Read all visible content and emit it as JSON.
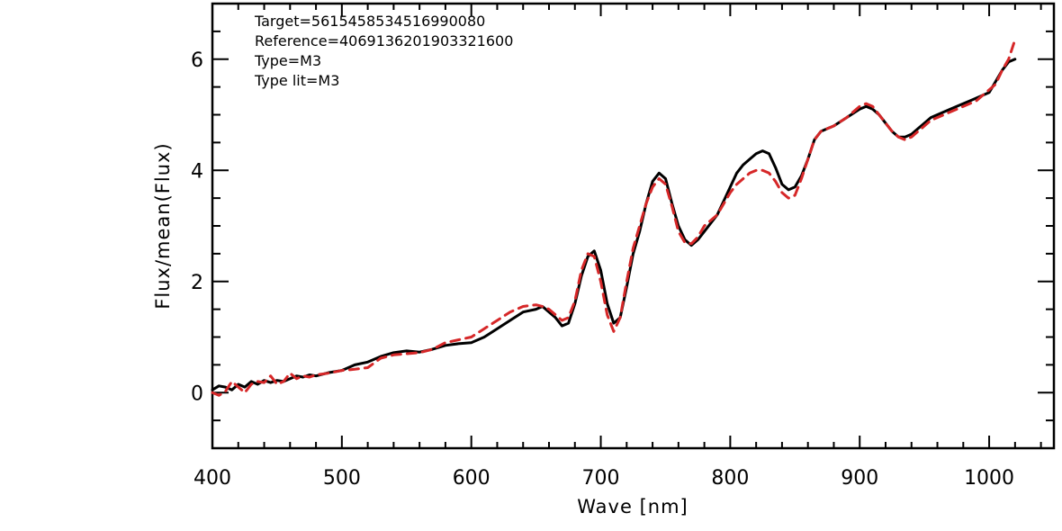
{
  "chart_data": {
    "type": "line",
    "xlabel": "Wave [nm]",
    "ylabel": "Flux/mean(Flux)",
    "xlim": [
      400,
      1050
    ],
    "ylim": [
      -1,
      7
    ],
    "xticks": [
      "400",
      "500",
      "600",
      "700",
      "800",
      "900",
      "1000"
    ],
    "yticks": [
      "0",
      "2",
      "4",
      "6"
    ],
    "annotations": [
      "Target=5615458534516990080",
      "Reference=4069136201903321600",
      "Type=M3",
      "Type lit=M3"
    ],
    "series": [
      {
        "style": "solid",
        "color": "#000000",
        "x": [
          400,
          405,
          410,
          415,
          420,
          425,
          430,
          435,
          440,
          445,
          450,
          455,
          460,
          465,
          470,
          475,
          480,
          490,
          500,
          510,
          520,
          530,
          540,
          550,
          560,
          570,
          580,
          590,
          600,
          610,
          620,
          630,
          640,
          650,
          655,
          660,
          665,
          670,
          675,
          680,
          685,
          690,
          695,
          700,
          705,
          710,
          715,
          720,
          725,
          730,
          735,
          740,
          745,
          750,
          755,
          760,
          765,
          770,
          775,
          780,
          790,
          800,
          805,
          810,
          815,
          820,
          825,
          830,
          835,
          840,
          845,
          850,
          855,
          860,
          865,
          870,
          875,
          880,
          890,
          900,
          905,
          910,
          915,
          920,
          925,
          930,
          935,
          940,
          945,
          950,
          955,
          960,
          970,
          980,
          985,
          990,
          995,
          1000,
          1005,
          1010,
          1015,
          1020
        ],
        "y": [
          0.05,
          0.12,
          0.1,
          0.05,
          0.15,
          0.1,
          0.2,
          0.15,
          0.22,
          0.18,
          0.22,
          0.2,
          0.25,
          0.3,
          0.28,
          0.32,
          0.3,
          0.36,
          0.4,
          0.5,
          0.55,
          0.65,
          0.72,
          0.75,
          0.73,
          0.78,
          0.85,
          0.88,
          0.9,
          1.0,
          1.15,
          1.3,
          1.45,
          1.5,
          1.55,
          1.45,
          1.35,
          1.2,
          1.25,
          1.6,
          2.1,
          2.45,
          2.55,
          2.2,
          1.6,
          1.25,
          1.35,
          1.9,
          2.5,
          2.9,
          3.4,
          3.8,
          3.95,
          3.85,
          3.4,
          3.0,
          2.75,
          2.65,
          2.75,
          2.9,
          3.2,
          3.7,
          3.95,
          4.1,
          4.2,
          4.3,
          4.35,
          4.3,
          4.05,
          3.75,
          3.65,
          3.7,
          3.9,
          4.2,
          4.55,
          4.7,
          4.75,
          4.8,
          4.95,
          5.1,
          5.15,
          5.1,
          5.0,
          4.85,
          4.7,
          4.6,
          4.6,
          4.65,
          4.75,
          4.85,
          4.95,
          5.0,
          5.1,
          5.2,
          5.25,
          5.3,
          5.35,
          5.4,
          5.6,
          5.8,
          5.95,
          6.0
        ]
      },
      {
        "style": "dashed",
        "color": "#d62728",
        "x": [
          400,
          405,
          410,
          415,
          420,
          425,
          430,
          435,
          440,
          445,
          450,
          455,
          460,
          465,
          470,
          475,
          480,
          490,
          500,
          510,
          520,
          530,
          540,
          550,
          560,
          570,
          580,
          590,
          600,
          610,
          620,
          630,
          640,
          650,
          655,
          660,
          665,
          670,
          675,
          680,
          685,
          690,
          695,
          700,
          705,
          710,
          715,
          720,
          725,
          730,
          735,
          740,
          745,
          750,
          755,
          760,
          765,
          770,
          775,
          780,
          790,
          800,
          805,
          810,
          815,
          820,
          825,
          830,
          835,
          840,
          845,
          850,
          855,
          860,
          865,
          870,
          875,
          880,
          890,
          900,
          905,
          910,
          915,
          920,
          925,
          930,
          935,
          940,
          945,
          950,
          955,
          960,
          970,
          980,
          985,
          990,
          995,
          1000,
          1005,
          1010,
          1015,
          1020
        ],
        "y": [
          0.0,
          -0.05,
          0.02,
          0.2,
          0.1,
          0.0,
          0.15,
          0.2,
          0.18,
          0.3,
          0.15,
          0.2,
          0.35,
          0.25,
          0.3,
          0.28,
          0.32,
          0.35,
          0.4,
          0.42,
          0.45,
          0.62,
          0.68,
          0.7,
          0.72,
          0.78,
          0.9,
          0.95,
          1.0,
          1.15,
          1.3,
          1.45,
          1.55,
          1.58,
          1.55,
          1.5,
          1.4,
          1.3,
          1.35,
          1.65,
          2.2,
          2.5,
          2.45,
          2.0,
          1.4,
          1.1,
          1.35,
          2.0,
          2.6,
          3.0,
          3.4,
          3.7,
          3.85,
          3.75,
          3.35,
          2.9,
          2.7,
          2.68,
          2.8,
          3.0,
          3.2,
          3.6,
          3.75,
          3.85,
          3.95,
          4.0,
          4.0,
          3.95,
          3.8,
          3.6,
          3.5,
          3.55,
          3.85,
          4.2,
          4.55,
          4.7,
          4.75,
          4.8,
          4.95,
          5.15,
          5.2,
          5.15,
          5.0,
          4.85,
          4.7,
          4.6,
          4.55,
          4.6,
          4.7,
          4.8,
          4.9,
          4.95,
          5.05,
          5.15,
          5.2,
          5.25,
          5.35,
          5.45,
          5.55,
          5.8,
          6.0,
          6.35
        ]
      }
    ]
  }
}
